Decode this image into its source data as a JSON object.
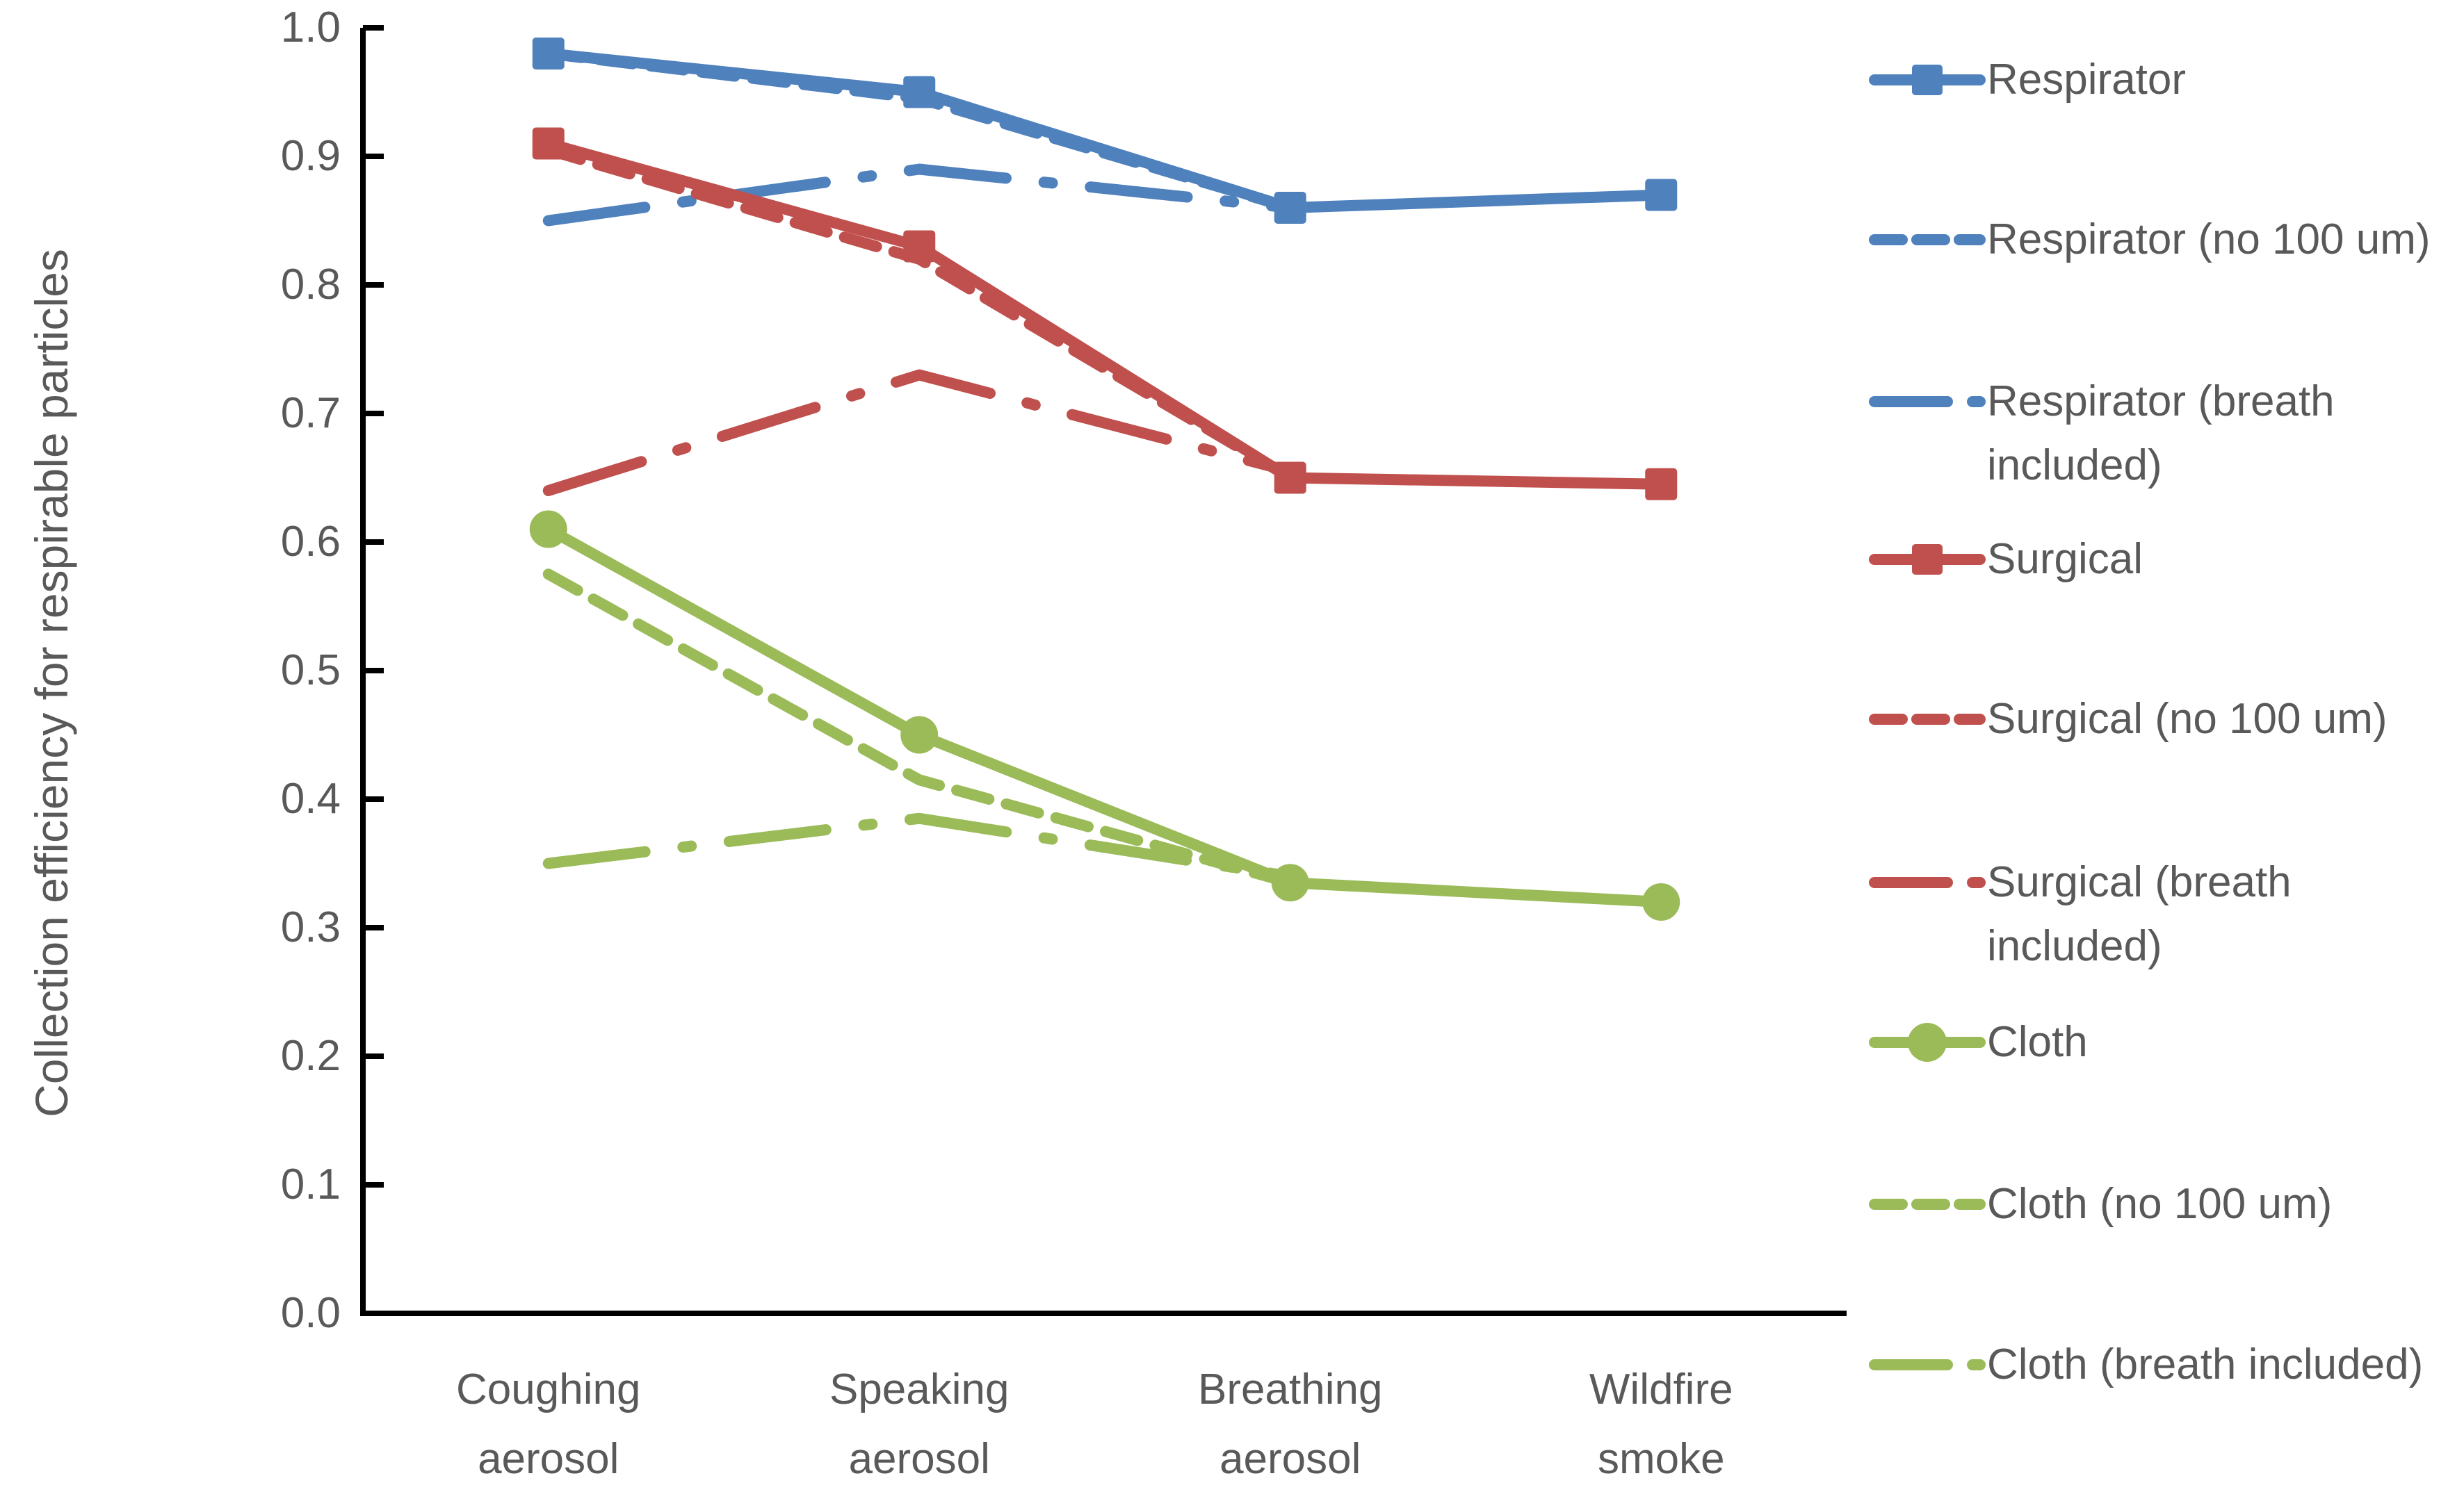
{
  "chart_data": {
    "type": "line",
    "title": "",
    "xlabel": "",
    "ylabel": "Collection efficiency for respirable particles",
    "ylim": [
      0.0,
      1.0
    ],
    "ytick_step": 0.1,
    "ytick_labels": [
      "1.0",
      "0.9",
      "0.8",
      "0.7",
      "0.6",
      "0.5",
      "0.4",
      "0.3",
      "0.2",
      "0.1",
      "0.0"
    ],
    "categories": [
      "Coughing aerosol",
      "Speaking aerosol",
      "Breathing aerosol",
      "Wildfire smoke"
    ],
    "category_lines": [
      [
        "Coughing",
        "aerosol"
      ],
      [
        "Speaking",
        "aerosol"
      ],
      [
        "Breathing",
        "aerosol"
      ],
      [
        "Wildfire",
        "smoke"
      ]
    ],
    "grid": false,
    "legend_position": "right",
    "colors": {
      "respirator_blue": "#4F81BD",
      "surgical_red": "#C0504D",
      "cloth_green": "#9BBB59",
      "text_gray": "#595959",
      "axis_black": "#000000"
    },
    "series": [
      {
        "name": "Respirator",
        "legend_lines": [
          "Respirator"
        ],
        "color": "#4F81BD",
        "line": "solid",
        "marker": "square",
        "values": [
          0.98,
          0.95,
          0.86,
          0.87
        ]
      },
      {
        "name": "Respirator (no 100 um)",
        "legend_lines": [
          "Respirator (no 100 um)"
        ],
        "color": "#4F81BD",
        "line": "short-dash",
        "marker": "none",
        "values": [
          0.98,
          0.945,
          0.86,
          null
        ]
      },
      {
        "name": "Respirator (breath included)",
        "legend_lines": [
          "Respirator (breath",
          "included)"
        ],
        "color": "#4F81BD",
        "line": "long-dash-dot",
        "marker": "none",
        "values": [
          0.85,
          0.89,
          0.86,
          null
        ]
      },
      {
        "name": "Surgical",
        "legend_lines": [
          "Surgical"
        ],
        "color": "#C0504D",
        "line": "solid",
        "marker": "square",
        "values": [
          0.91,
          0.83,
          0.65,
          0.645
        ]
      },
      {
        "name": "Surgical (no 100 um)",
        "legend_lines": [
          "Surgical (no 100 um)"
        ],
        "color": "#C0504D",
        "line": "short-dash",
        "marker": "none",
        "values": [
          0.905,
          0.82,
          0.65,
          null
        ]
      },
      {
        "name": "Surgical (breath included)",
        "legend_lines": [
          "Surgical (breath",
          "included)"
        ],
        "color": "#C0504D",
        "line": "long-dash-dot",
        "marker": "none",
        "values": [
          0.64,
          0.73,
          0.655,
          null
        ]
      },
      {
        "name": "Cloth",
        "legend_lines": [
          "Cloth"
        ],
        "color": "#9BBB59",
        "line": "solid",
        "marker": "circle",
        "values": [
          0.61,
          0.45,
          0.335,
          0.32
        ]
      },
      {
        "name": "Cloth (no 100 um)",
        "legend_lines": [
          "Cloth (no 100 um)"
        ],
        "color": "#9BBB59",
        "line": "short-dash",
        "marker": "none",
        "values": [
          0.575,
          0.415,
          0.335,
          null
        ]
      },
      {
        "name": "Cloth (breath included)",
        "legend_lines": [
          "Cloth (breath included)"
        ],
        "color": "#9BBB59",
        "line": "long-dash-dot",
        "marker": "none",
        "values": [
          0.35,
          0.385,
          0.34,
          null
        ]
      }
    ]
  }
}
